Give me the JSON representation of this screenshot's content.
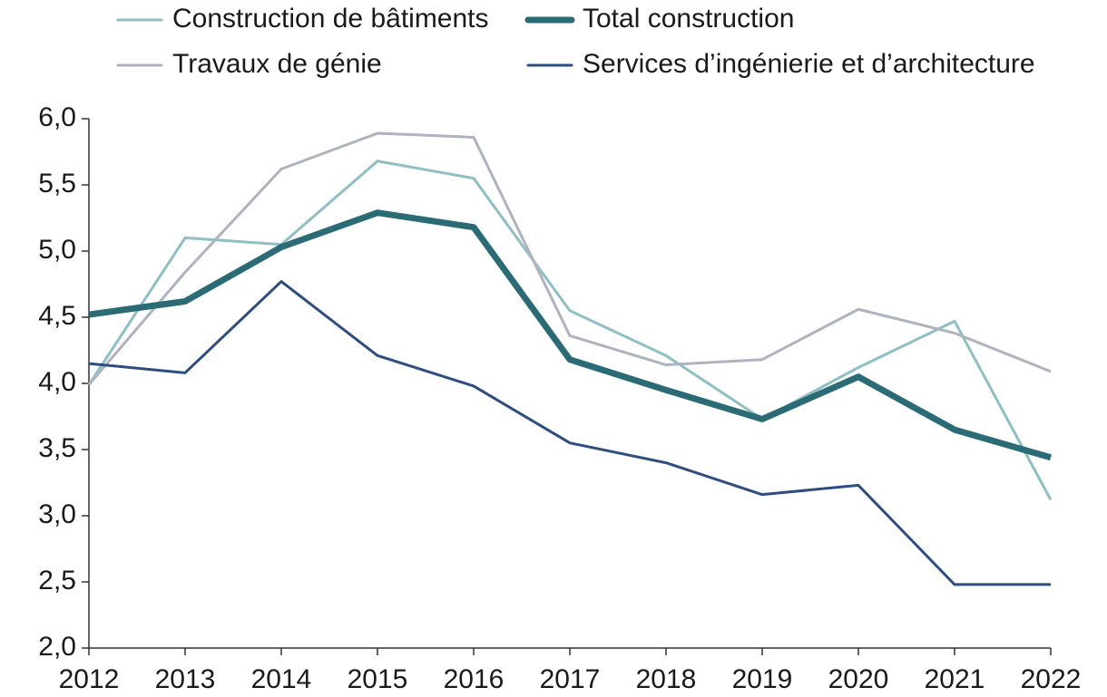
{
  "chart_data": {
    "type": "line",
    "categories": [
      "2012",
      "2013",
      "2014",
      "2015",
      "2016",
      "2017",
      "2018",
      "2019",
      "2020",
      "2021",
      "2022"
    ],
    "series": [
      {
        "name": "Construction de bâtiments",
        "color": "#8fbfc4",
        "width": 3,
        "values": [
          3.99,
          5.1,
          5.05,
          5.68,
          5.55,
          4.55,
          4.21,
          3.73,
          4.12,
          4.47,
          3.12
        ]
      },
      {
        "name": "Total construction",
        "color": "#2a6b75",
        "width": 7,
        "values": [
          4.52,
          4.62,
          5.03,
          5.29,
          5.18,
          4.18,
          3.95,
          3.73,
          4.05,
          3.65,
          3.44
        ]
      },
      {
        "name": "Travaux de génie",
        "color": "#aeb3bf",
        "width": 3,
        "values": [
          3.99,
          4.84,
          5.62,
          5.89,
          5.86,
          4.36,
          4.14,
          4.18,
          4.56,
          4.38,
          4.09
        ]
      },
      {
        "name": "Services d’ingénierie et d’architecture",
        "color": "#2f4d7e",
        "width": 3,
        "values": [
          4.15,
          4.08,
          4.77,
          4.21,
          3.98,
          3.55,
          3.4,
          3.16,
          3.23,
          2.48,
          2.48
        ]
      }
    ],
    "ylim": [
      2,
      6
    ],
    "yticks": [
      {
        "value": 2,
        "label": "2,0"
      },
      {
        "value": 2.5,
        "label": "2,5"
      },
      {
        "value": 3,
        "label": "3,0"
      },
      {
        "value": 3.5,
        "label": "3,5"
      },
      {
        "value": 4,
        "label": "4,0"
      },
      {
        "value": 4.5,
        "label": "4,5"
      },
      {
        "value": 5,
        "label": "5,0"
      },
      {
        "value": 5.5,
        "label": "5,5"
      },
      {
        "value": 6,
        "label": "6,0"
      }
    ],
    "legend": "top"
  }
}
